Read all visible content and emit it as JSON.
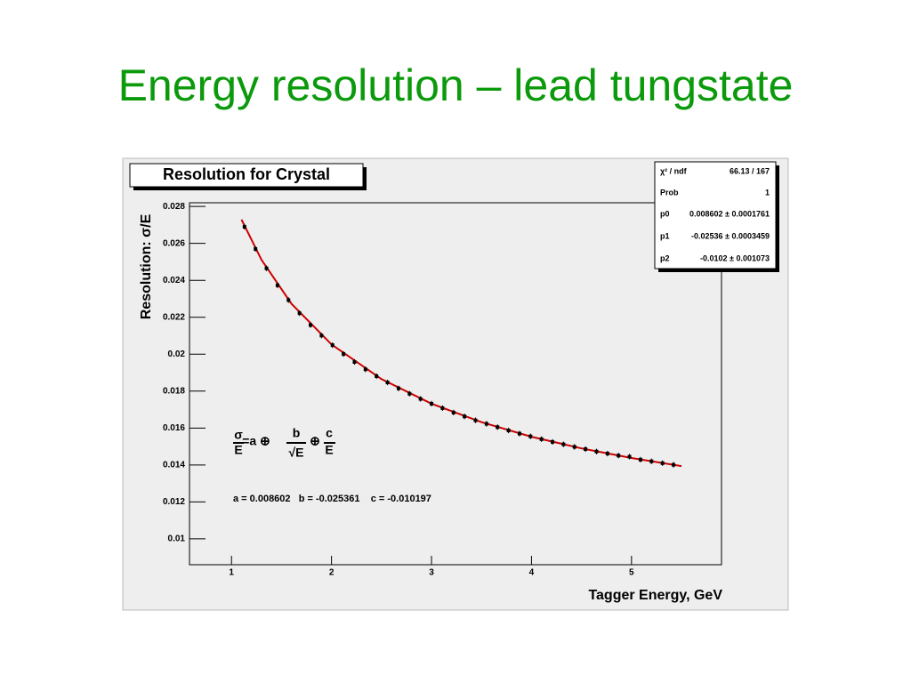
{
  "chart_data": {
    "type": "scatter",
    "title": "Energy resolution – lead tungstate",
    "plot_title": "Resolution for Crystal",
    "x_label": "Tagger Energy, GeV",
    "y_label": "Resolution: σ/E",
    "xlim": [
      0.58,
      5.9
    ],
    "ylim": [
      0.0086,
      0.0282
    ],
    "xticks": [
      1,
      2,
      3,
      4,
      5
    ],
    "yticks": [
      0.01,
      0.012,
      0.014,
      0.016,
      0.018,
      0.02,
      0.022,
      0.024,
      0.026,
      0.028
    ],
    "marker_color": "#000000",
    "x": [
      1.13,
      1.24,
      1.35,
      1.46,
      1.57,
      1.68,
      1.79,
      1.9,
      2.01,
      2.12,
      2.23,
      2.34,
      2.45,
      2.56,
      2.67,
      2.78,
      2.89,
      3.0,
      3.11,
      3.22,
      3.33,
      3.44,
      3.55,
      3.66,
      3.77,
      3.88,
      3.99,
      4.1,
      4.21,
      4.32,
      4.43,
      4.54,
      4.65,
      4.76,
      4.87,
      4.98,
      5.09,
      5.2,
      5.31,
      5.42
    ],
    "values": [
      0.0269,
      0.0257,
      0.02465,
      0.02373,
      0.02293,
      0.02222,
      0.02158,
      0.02101,
      0.02049,
      0.02001,
      0.01958,
      0.01918,
      0.01881,
      0.01847,
      0.01815,
      0.01786,
      0.01758,
      0.01732,
      0.01708,
      0.01684,
      0.01663,
      0.01642,
      0.01623,
      0.01605,
      0.01587,
      0.0157,
      0.01555,
      0.0154,
      0.01525,
      0.01512,
      0.01498,
      0.01486,
      0.01473,
      0.01462,
      0.01451,
      0.01445,
      0.01429,
      0.0142,
      0.0141,
      0.01401
    ],
    "errors": [
      0.00015,
      0.00015,
      0.00015,
      0.00015,
      0.00015,
      0.00015,
      0.00015,
      0.00015,
      0.00015,
      0.00015,
      0.00015,
      0.00015,
      0.00015,
      0.00015,
      0.00015,
      0.00015,
      0.00015,
      0.00015,
      0.00015,
      0.00015,
      0.00015,
      0.00015,
      0.00015,
      0.00015,
      0.00015,
      0.00015,
      0.00015,
      0.00015,
      0.00015,
      0.00015,
      0.00015,
      0.00015,
      0.00015,
      0.00015,
      0.00015,
      0.00015,
      0.00015,
      0.00015,
      0.00015,
      0.00015
    ],
    "fit": {
      "color": "#cc0000",
      "x": [
        1.1,
        1.3,
        1.6,
        2.0,
        2.5,
        3.0,
        3.5,
        4.0,
        4.5,
        5.0,
        5.5
      ],
      "values": [
        0.02729,
        0.02511,
        0.02273,
        0.02053,
        0.01865,
        0.01732,
        0.01632,
        0.01553,
        0.0149,
        0.01438,
        0.01394
      ]
    },
    "stats": [
      {
        "label": "χ² / ndf",
        "value": "66.13 / 167"
      },
      {
        "label": "Prob",
        "value": "1"
      },
      {
        "label": "p0",
        "value": "0.008602 ± 0.0001761"
      },
      {
        "label": "p1",
        "value": "-0.02536 ± 0.0003459"
      },
      {
        "label": "p2",
        "value": "-0.0102 ± 0.001073"
      }
    ],
    "formula": [
      "σ",
      "E",
      "=a ⊕",
      "b",
      "√E",
      "⊕",
      "c",
      "E"
    ],
    "annotation": "a = 0.008602   b = -0.025361    c = -0.010197"
  }
}
